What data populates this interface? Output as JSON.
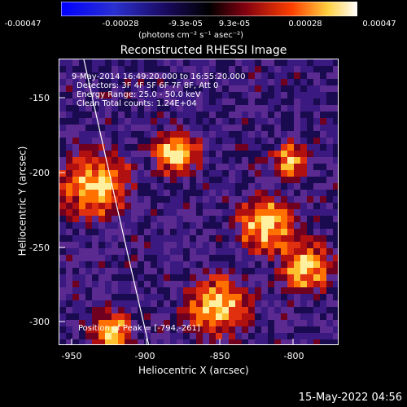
{
  "colorbar": {
    "ticks": [
      "-0.00047",
      "-0.00028",
      "-9.3e-05",
      "9.3e-05",
      "0.00028",
      "0.00047"
    ],
    "unit": "(photons cm⁻² s⁻¹ asec⁻²)",
    "colors": [
      "#0000ff",
      "#3040ff",
      "#0a0a7a",
      "#000000",
      "#800010",
      "#ff4000",
      "#ffff80",
      "#ffffff"
    ]
  },
  "title": "Reconstructed RHESSI Image",
  "info": {
    "time": "9-May-2014 16:49:20.000 to 16:55:20.000",
    "detectors": "Detectors: 3F 4F 5F 6F 7F 8F, Att 0",
    "energy": "Energy Range: 25.0 - 50.0 keV",
    "clean": "Clean     Total counts: 1.24E+04",
    "peak": "Position of Peak = [-794,-261]"
  },
  "axes": {
    "ylabel": "Heliocentric Y (arcsec)",
    "xlabel": "Heliocentric X (arcsec)",
    "yticks": [
      "-150",
      "-200",
      "-250",
      "-300"
    ],
    "xticks": [
      "-950",
      "-900",
      "-850",
      "-800"
    ]
  },
  "timestamp": "15-May-2022 04:56"
}
